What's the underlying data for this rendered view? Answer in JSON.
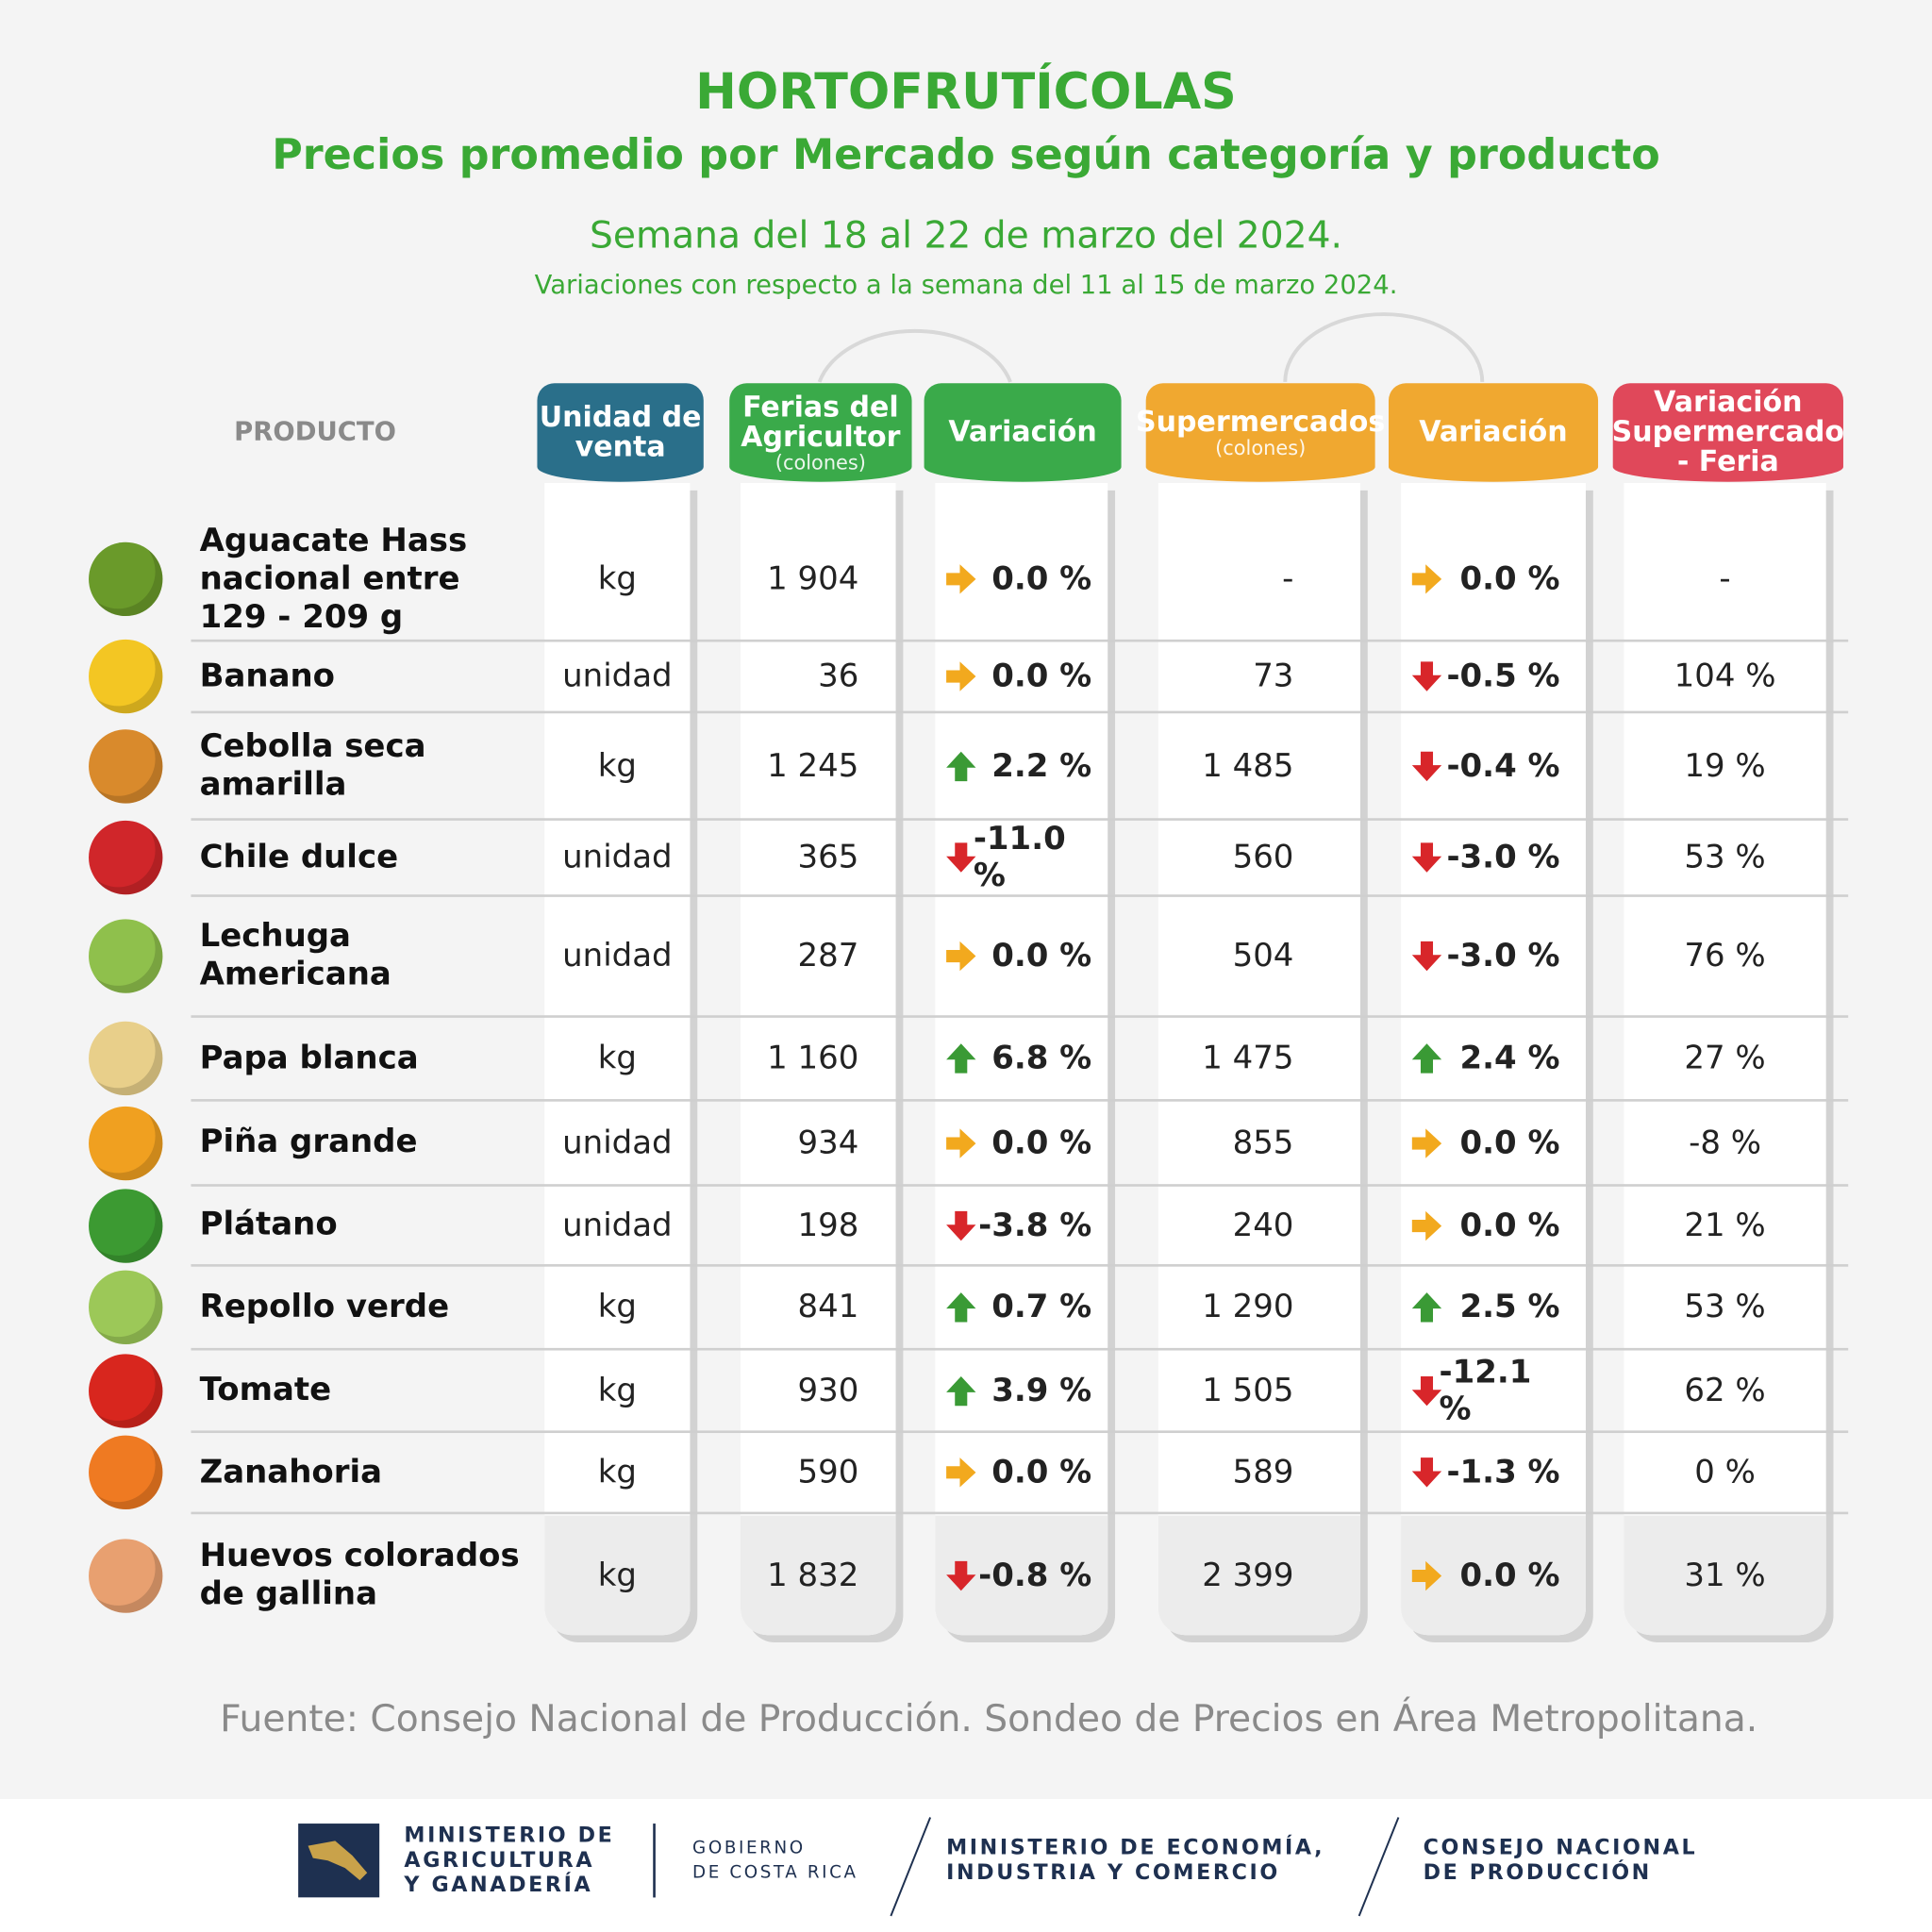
{
  "header": {
    "title": "HORTOFRUTÍCOLAS",
    "subtitle": "Precios promedio por Mercado según categoría y producto",
    "week": "Semana del 18 al 22 de marzo del 2024.",
    "note": "Variaciones con respecto a la semana del 11 al 15 de marzo 2024."
  },
  "table": {
    "columns": [
      {
        "label": "PRODUCTO"
      },
      {
        "label": "Unidad de venta"
      },
      {
        "label": "Ferias del Agricultor",
        "sub": "(colones)"
      },
      {
        "label": "Variación"
      },
      {
        "label": "Supermercados",
        "sub": "(colones)"
      },
      {
        "label": "Variación"
      },
      {
        "label": "Variación Supermercado - Feria"
      }
    ],
    "rows": [
      [
        "Aguacate Hass\nnacional entre\n129 - 209 g",
        "kg",
        "1 904",
        "0.0 %",
        "-",
        "0.0 %",
        "-"
      ],
      [
        "Banano",
        "unidad",
        "36",
        "0.0 %",
        "73",
        "-0.5 %",
        "104 %"
      ],
      [
        "Cebolla seca\namarilla",
        "kg",
        "1 245",
        "2.2 %",
        "1 485",
        "-0.4 %",
        "19 %"
      ],
      [
        "Chile dulce",
        "unidad",
        "365",
        "-11.0 %",
        "560",
        "-3.0 %",
        "53 %"
      ],
      [
        "Lechuga\nAmericana",
        "unidad",
        "287",
        "0.0 %",
        "504",
        "-3.0 %",
        "76 %"
      ],
      [
        "Papa blanca",
        "kg",
        "1 160",
        "6.8 %",
        "1 475",
        "2.4 %",
        "27 %"
      ],
      [
        "Piña grande",
        "unidad",
        "934",
        "0.0 %",
        "855",
        "0.0 %",
        "-8 %"
      ],
      [
        "Plátano",
        "unidad",
        "198",
        "-3.8 %",
        "240",
        "0.0 %",
        "21 %"
      ],
      [
        "Repollo verde",
        "kg",
        "841",
        "0.7 %",
        "1 290",
        "2.5 %",
        "53 %"
      ],
      [
        "Tomate",
        "kg",
        "930",
        "3.9 %",
        "1 505",
        "-12.1 %",
        "62 %"
      ],
      [
        "Zanahoria",
        "kg",
        "590",
        "0.0 %",
        "589",
        "-1.3 %",
        "0 %"
      ],
      [
        "Huevos colorados\nde gallina",
        "kg",
        "1 832",
        "-0.8 %",
        "2 399",
        "0.0 %",
        "31 %"
      ]
    ]
  },
  "footer": {
    "source": "Fuente: Consejo Nacional de Producción. Sondeo de Precios en Área Metropolitana.",
    "logos": [
      "MINISTERIO DE\nAGRICULTURA\nY GANADERÍA",
      "GOBIERNO\nDE COSTA RICA",
      "MINISTERIO DE ECONOMÍA,\nINDUSTRIA Y COMERCIO",
      "CONSEJO NACIONAL\nDE PRODUCCIÓN"
    ]
  }
}
